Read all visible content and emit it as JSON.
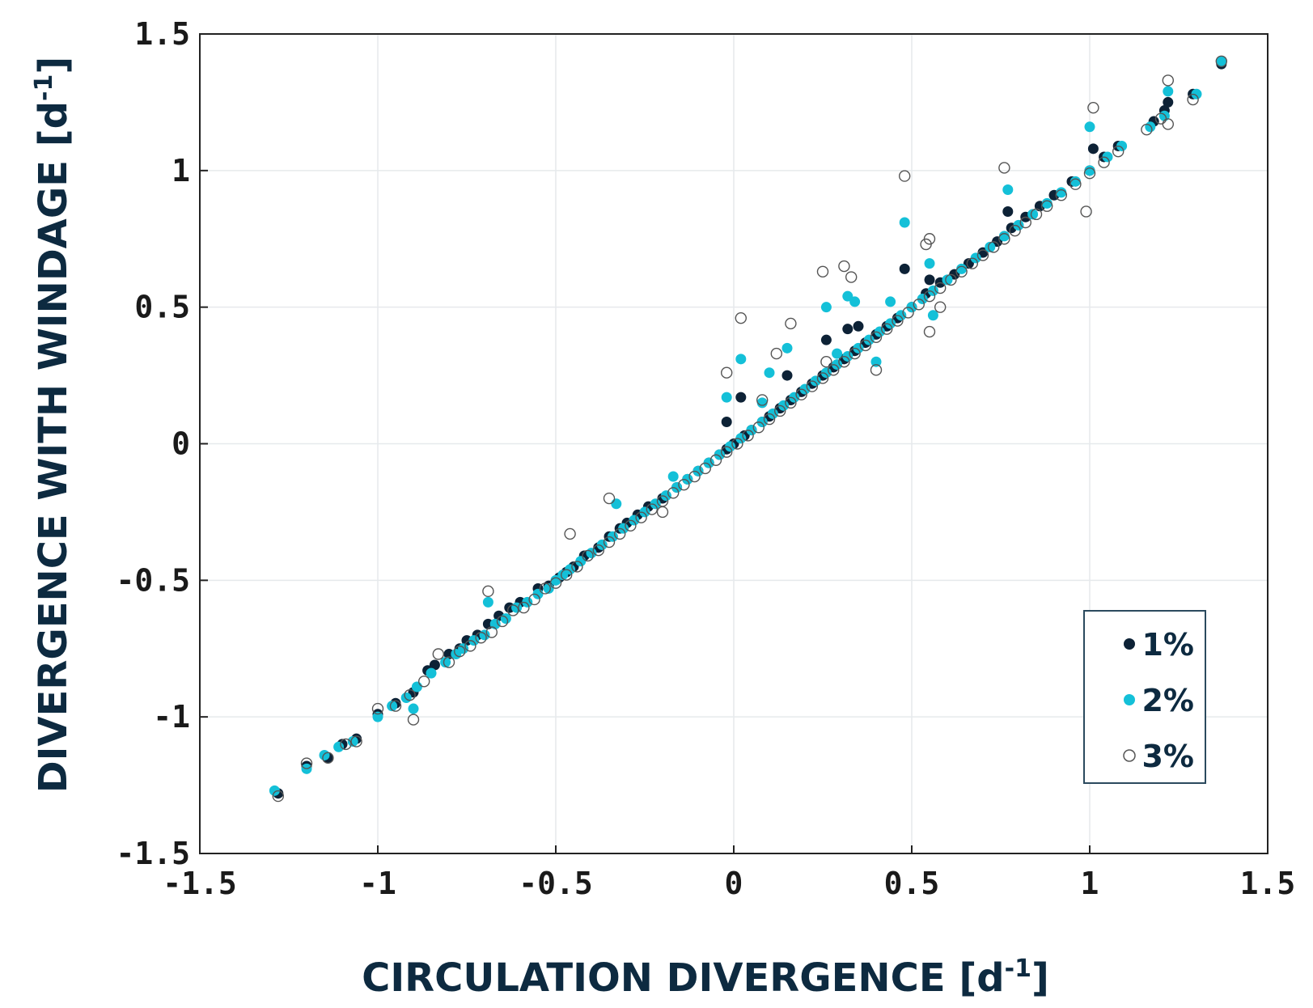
{
  "chart_data": {
    "type": "scatter",
    "title": "",
    "xlabel": "CIRCULATION DIVERGENCE [d",
    "xlabel_sup": "-1",
    "xlabel_close": "]",
    "ylabel": "DIVERGENCE WITH WINDAGE [d",
    "ylabel_sup": "-1",
    "ylabel_close": "]",
    "xlim": [
      -1.5,
      1.5
    ],
    "ylim": [
      -1.5,
      1.5
    ],
    "xticks": [
      -1.5,
      -1,
      -0.5,
      0,
      0.5,
      1,
      1.5
    ],
    "yticks": [
      -1.5,
      -1,
      -0.5,
      0,
      0.5,
      1,
      1.5
    ],
    "xtick_labels": [
      "-1.5",
      "-1",
      "-0.5",
      "0",
      "0.5",
      "1",
      "1.5"
    ],
    "ytick_labels": [
      "-1.5",
      "-1",
      "-0.5",
      "0",
      "0.5",
      "1",
      "1.5"
    ],
    "grid": true,
    "legend_position": "bottom-right",
    "series": [
      {
        "name": "1%",
        "color": "#0d2236",
        "marker": "filled-circle",
        "x": [
          -1.28,
          -1.2,
          -1.14,
          -1.1,
          -1.06,
          -1.0,
          -0.95,
          -0.9,
          -0.86,
          -0.84,
          -0.8,
          -0.77,
          -0.75,
          -0.72,
          -0.69,
          -0.66,
          -0.63,
          -0.6,
          -0.55,
          -0.52,
          -0.49,
          -0.47,
          -0.45,
          -0.42,
          -0.38,
          -0.35,
          -0.32,
          -0.3,
          -0.27,
          -0.24,
          -0.2,
          -0.16,
          -0.13,
          -0.1,
          -0.07,
          -0.04,
          -0.02,
          0.0,
          0.03,
          0.05,
          0.08,
          0.1,
          0.13,
          0.16,
          0.19,
          0.22,
          0.25,
          0.28,
          0.31,
          0.34,
          0.37,
          0.4,
          0.43,
          0.46,
          0.5,
          0.54,
          0.58,
          0.62,
          0.66,
          0.7,
          0.74,
          0.78,
          0.82,
          0.86,
          0.9,
          0.95,
          1.0,
          1.04,
          1.08,
          1.18,
          1.21,
          1.29,
          1.37,
          -0.02,
          0.02,
          0.15,
          0.26,
          0.32,
          0.35,
          0.48,
          0.55,
          0.77,
          1.01,
          1.22
        ],
        "y": [
          -1.28,
          -1.18,
          -1.15,
          -1.1,
          -1.08,
          -0.99,
          -0.95,
          -0.91,
          -0.83,
          -0.81,
          -0.77,
          -0.75,
          -0.72,
          -0.7,
          -0.66,
          -0.63,
          -0.6,
          -0.58,
          -0.53,
          -0.52,
          -0.49,
          -0.47,
          -0.45,
          -0.41,
          -0.38,
          -0.34,
          -0.31,
          -0.29,
          -0.26,
          -0.23,
          -0.2,
          -0.16,
          -0.13,
          -0.1,
          -0.07,
          -0.04,
          -0.02,
          0.0,
          0.03,
          0.05,
          0.08,
          0.1,
          0.13,
          0.16,
          0.19,
          0.22,
          0.25,
          0.28,
          0.31,
          0.34,
          0.37,
          0.4,
          0.43,
          0.46,
          0.5,
          0.55,
          0.59,
          0.62,
          0.66,
          0.7,
          0.74,
          0.79,
          0.83,
          0.87,
          0.91,
          0.96,
          1.0,
          1.05,
          1.09,
          1.18,
          1.22,
          1.28,
          1.39,
          0.08,
          0.17,
          0.25,
          0.38,
          0.42,
          0.43,
          0.64,
          0.6,
          0.85,
          1.08,
          1.25
        ]
      },
      {
        "name": "2%",
        "color": "#14c0d8",
        "marker": "filled-circle",
        "x": [
          -1.29,
          -1.2,
          -1.15,
          -1.11,
          -1.07,
          -1.0,
          -0.96,
          -0.92,
          -0.89,
          -0.85,
          -0.81,
          -0.78,
          -0.76,
          -0.73,
          -0.7,
          -0.67,
          -0.64,
          -0.61,
          -0.58,
          -0.55,
          -0.52,
          -0.5,
          -0.48,
          -0.46,
          -0.43,
          -0.4,
          -0.37,
          -0.34,
          -0.31,
          -0.28,
          -0.25,
          -0.22,
          -0.19,
          -0.16,
          -0.13,
          -0.1,
          -0.07,
          -0.04,
          -0.01,
          0.02,
          0.05,
          0.08,
          0.11,
          0.14,
          0.17,
          0.2,
          0.23,
          0.26,
          0.29,
          0.32,
          0.35,
          0.38,
          0.41,
          0.44,
          0.47,
          0.5,
          0.53,
          0.56,
          0.6,
          0.64,
          0.68,
          0.72,
          0.76,
          0.8,
          0.84,
          0.88,
          0.92,
          0.96,
          1.0,
          1.05,
          1.09,
          1.17,
          1.21,
          1.3,
          1.37,
          -0.02,
          0.02,
          0.08,
          0.1,
          0.15,
          0.26,
          0.29,
          0.32,
          0.34,
          0.44,
          0.48,
          0.55,
          0.77,
          1.0,
          1.22,
          -0.69,
          -0.9,
          -0.33,
          -0.17,
          0.4,
          0.56
        ],
        "y": [
          -1.27,
          -1.19,
          -1.14,
          -1.11,
          -1.09,
          -1.0,
          -0.96,
          -0.93,
          -0.89,
          -0.84,
          -0.8,
          -0.77,
          -0.75,
          -0.72,
          -0.7,
          -0.66,
          -0.64,
          -0.6,
          -0.58,
          -0.55,
          -0.53,
          -0.5,
          -0.48,
          -0.46,
          -0.43,
          -0.4,
          -0.37,
          -0.34,
          -0.31,
          -0.28,
          -0.25,
          -0.22,
          -0.19,
          -0.16,
          -0.13,
          -0.1,
          -0.07,
          -0.04,
          -0.01,
          0.02,
          0.05,
          0.08,
          0.11,
          0.14,
          0.17,
          0.2,
          0.23,
          0.26,
          0.29,
          0.32,
          0.35,
          0.38,
          0.41,
          0.44,
          0.47,
          0.5,
          0.53,
          0.56,
          0.6,
          0.64,
          0.68,
          0.72,
          0.76,
          0.8,
          0.84,
          0.88,
          0.92,
          0.96,
          1.0,
          1.05,
          1.09,
          1.16,
          1.2,
          1.28,
          1.4,
          0.17,
          0.31,
          0.15,
          0.26,
          0.35,
          0.5,
          0.33,
          0.54,
          0.52,
          0.52,
          0.81,
          0.66,
          0.93,
          1.16,
          1.29,
          -0.58,
          -0.97,
          -0.22,
          -0.12,
          0.3,
          0.47
        ]
      },
      {
        "name": "3%",
        "color": "#555555",
        "marker": "open-circle",
        "x": [
          -1.28,
          -1.2,
          -1.14,
          -1.09,
          -1.06,
          -1.0,
          -0.95,
          -0.91,
          -0.87,
          -0.83,
          -0.8,
          -0.77,
          -0.74,
          -0.71,
          -0.68,
          -0.65,
          -0.62,
          -0.59,
          -0.56,
          -0.53,
          -0.5,
          -0.47,
          -0.44,
          -0.41,
          -0.38,
          -0.35,
          -0.32,
          -0.29,
          -0.26,
          -0.23,
          -0.2,
          -0.17,
          -0.14,
          -0.11,
          -0.08,
          -0.05,
          -0.02,
          0.01,
          0.04,
          0.07,
          0.1,
          0.13,
          0.16,
          0.19,
          0.22,
          0.25,
          0.28,
          0.31,
          0.34,
          0.37,
          0.4,
          0.43,
          0.46,
          0.49,
          0.52,
          0.55,
          0.58,
          0.61,
          0.64,
          0.67,
          0.7,
          0.73,
          0.76,
          0.79,
          0.82,
          0.85,
          0.88,
          0.92,
          0.96,
          1.0,
          1.04,
          1.08,
          1.16,
          1.2,
          1.22,
          1.29,
          1.37,
          -0.02,
          0.02,
          0.08,
          0.12,
          0.16,
          0.25,
          0.26,
          0.31,
          0.33,
          0.48,
          0.54,
          0.55,
          0.76,
          0.99,
          1.01,
          1.22,
          -0.69,
          -0.9,
          -0.35,
          -0.2,
          0.55,
          0.4,
          -0.46,
          0.58
        ],
        "y": [
          -1.29,
          -1.17,
          -1.15,
          -1.1,
          -1.09,
          -0.97,
          -0.96,
          -0.92,
          -0.87,
          -0.77,
          -0.8,
          -0.76,
          -0.74,
          -0.71,
          -0.69,
          -0.65,
          -0.61,
          -0.6,
          -0.57,
          -0.53,
          -0.51,
          -0.48,
          -0.45,
          -0.41,
          -0.39,
          -0.36,
          -0.33,
          -0.3,
          -0.27,
          -0.24,
          -0.21,
          -0.18,
          -0.15,
          -0.12,
          -0.09,
          -0.06,
          -0.03,
          0.0,
          0.03,
          0.06,
          0.09,
          0.12,
          0.15,
          0.18,
          0.21,
          0.24,
          0.27,
          0.3,
          0.33,
          0.36,
          0.39,
          0.42,
          0.45,
          0.48,
          0.51,
          0.54,
          0.57,
          0.6,
          0.63,
          0.66,
          0.69,
          0.72,
          0.75,
          0.78,
          0.81,
          0.84,
          0.87,
          0.91,
          0.95,
          0.99,
          1.03,
          1.07,
          1.15,
          1.19,
          1.33,
          1.26,
          1.4,
          0.26,
          0.46,
          0.16,
          0.33,
          0.44,
          0.63,
          0.3,
          0.65,
          0.61,
          0.98,
          0.73,
          0.75,
          1.01,
          0.85,
          1.23,
          1.17,
          -0.54,
          -1.01,
          -0.2,
          -0.25,
          0.41,
          0.27,
          -0.33,
          0.5
        ]
      }
    ]
  }
}
